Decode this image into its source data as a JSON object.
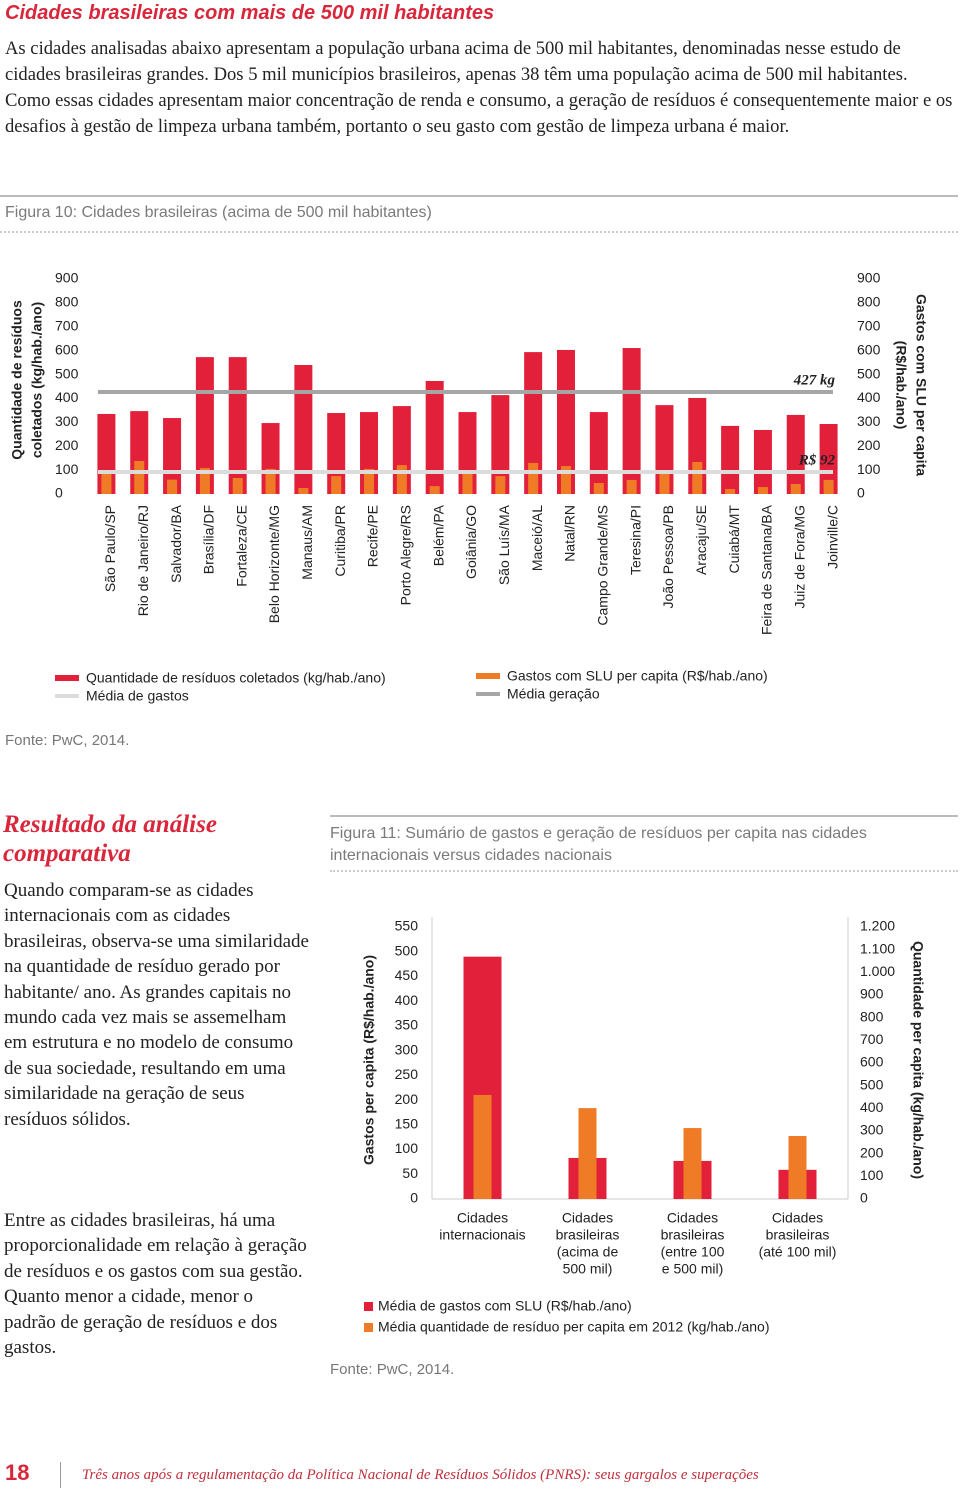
{
  "header": {
    "title": "Cidades brasileiras com mais de 500 mil habitantes",
    "paragraph": "As cidades analisadas abaixo apresentam a população urbana acima de 500 mil habitantes, denominadas nesse estudo de cidades brasileiras grandes. Dos 5 mil municípios brasileiros, apenas 38 têm uma população acima de 500 mil habitantes. Como essas cidades apresentam maior concentração de renda e consumo, a geração de resíduos é consequentemente maior e os desafios à gestão de limpeza urbana também, portanto o seu gasto com gestão de limpeza urbana é maior."
  },
  "figure_10": {
    "caption": "Figura 10: Cidades brasileiras (acima de 500 mil habitantes)",
    "source": "Fonte: PwC, 2014."
  },
  "section": {
    "title": "Resultado da análise comparativa",
    "paragraphs": [
      "Quando comparam-se as cidades internacionais com as cidades brasileiras, observa-se uma similaridade na quantidade de resíduo gerado por habitante/ ano. As grandes capitais no mundo cada vez mais se assemelham em estrutura e no modelo de consumo de sua sociedade, resultando em uma similaridade na geração de seus resíduos sólidos.",
      "Entre as cidades brasileiras, há uma proporcionalidade em relação à geração de resíduos e os gastos com sua gestão. Quanto menor a cidade, menor o padrão de geração de resíduos e dos gastos."
    ]
  },
  "figure_11": {
    "caption": "Figura 11: Sumário de gastos e geração de resíduos per capita nas cidades internacionais versus cidades nacionais",
    "source": "Fonte: PwC, 2014."
  },
  "footer": {
    "page_number": "18",
    "text": "Três anos após a regulamentação da Política Nacional de Resíduos Sólidos (PNRS): seus gargalos e superações"
  },
  "chart_data": [
    {
      "type": "bar",
      "categories": [
        "São Paulo/SP",
        "Rio de Janeiro/RJ",
        "Salvador/BA",
        "Brasília/DF",
        "Fortaleza/CE",
        "Belo Horizonte/MG",
        "Manaus/AM",
        "Curitiba/PR",
        "Recife/PE",
        "Porto Alegre/RS",
        "Belém/PA",
        "Goiânia/GO",
        "São Luís/MA",
        "Maceió/AL",
        "Natal/RN",
        "Campo Grande/MS",
        "Teresina/PI",
        "João Pessoa/PB",
        "Aracaju/SE",
        "Cuiabá/MT",
        "Feira de Santana/BA",
        "Juiz de Fora/MG",
        "Joinville/C"
      ],
      "series": [
        {
          "name": "Quantidade de resíduos coletados (kg/hab./ano)",
          "color": "#e3203a",
          "values": [
            335,
            347,
            318,
            573,
            573,
            297,
            540,
            339,
            343,
            368,
            473,
            343,
            414,
            594,
            603,
            343,
            611,
            372,
            402,
            285,
            268,
            331,
            293
          ]
        },
        {
          "name": "Gastos com SLU per capita (R$/hab./ano)",
          "color": "#f07b26",
          "axis": "y2",
          "values": [
            100,
            138,
            60,
            109,
            67,
            105,
            25,
            75,
            105,
            121,
            33,
            92,
            75,
            130,
            117,
            46,
            59,
            100,
            134,
            21,
            29,
            42,
            59
          ]
        }
      ],
      "reference_lines": [
        {
          "name": "Média geração",
          "color": "#a6a6a6",
          "value": 427,
          "label": "427 kg"
        },
        {
          "name": "Média de gastos",
          "color": "#dcdcdc",
          "axis": "y2",
          "value": 92,
          "label": "R$ 92"
        }
      ],
      "ylabel": [
        "Quantidade de resíduos",
        "coletados (kg/hab./ano)"
      ],
      "y2label": [
        "Gastos com SLU per capita",
        "(R$/hab./ano)"
      ],
      "ylim": [
        0,
        900
      ],
      "yticks": [
        0,
        100,
        200,
        300,
        400,
        500,
        600,
        700,
        800,
        900
      ],
      "y2lim": [
        0,
        900
      ],
      "y2ticks": [
        0,
        100,
        200,
        300,
        400,
        500,
        600,
        700,
        800,
        900
      ]
    },
    {
      "type": "bar",
      "categories": [
        [
          "Cidades",
          "internacionais"
        ],
        [
          "Cidades",
          "brasileiras",
          "(acima de",
          "500 mil)"
        ],
        [
          "Cidades",
          "brasileiras",
          "(entre 100",
          "e 500 mil)"
        ],
        [
          "Cidades",
          "brasileiras",
          "(até 100 mil)"
        ]
      ],
      "series": [
        {
          "name": "Média de gastos com SLU (R$/hab./ano)",
          "color": "#e3203a",
          "values": [
            490,
            83,
            77,
            59
          ]
        },
        {
          "name": "Média quantidade de resíduo per capita em 2012 (kg/hab./ano)",
          "color": "#f07b26",
          "axis": "y2",
          "values": [
            459,
            401,
            313,
            278
          ]
        }
      ],
      "ylabel": "Gastos per capita (R$/hab./ano)",
      "y2label": "Quantidade per capita (kg/hab./ano)",
      "ylim": [
        0,
        550
      ],
      "yticks": [
        0,
        50,
        100,
        150,
        200,
        250,
        300,
        350,
        400,
        450,
        500,
        550
      ],
      "y2lim": [
        0,
        1200
      ],
      "y2ticks": [
        0,
        100,
        200,
        300,
        400,
        500,
        600,
        700,
        800,
        900,
        {
          "value": 1000,
          "label": "1.000"
        },
        {
          "value": 1100,
          "label": "1.100"
        },
        {
          "value": 1200,
          "label": "1.200"
        }
      ]
    }
  ]
}
